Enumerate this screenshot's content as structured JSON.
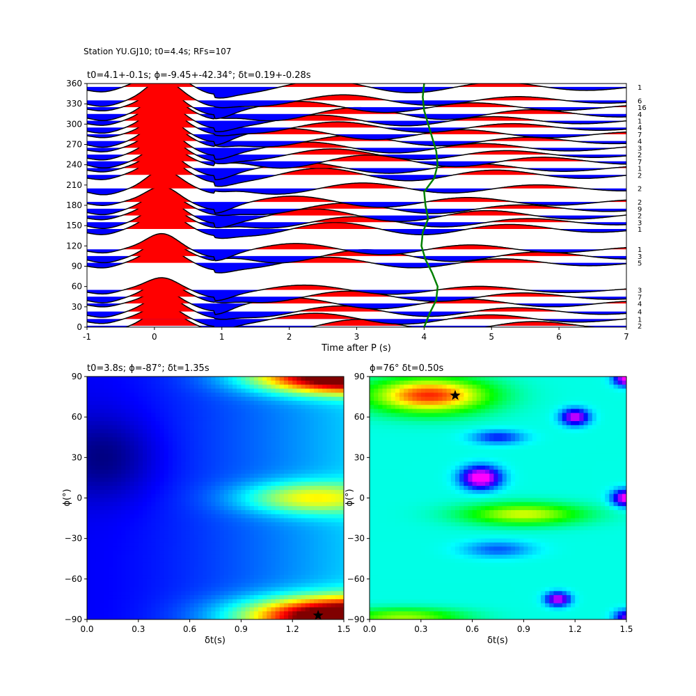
{
  "figure": {
    "suptitle": "Station YU.GJ10; t0=4.4s; RFs=107"
  },
  "chart_data": [
    {
      "type": "line",
      "panel": "traces",
      "title": "t0=4.1+-0.1s; ϕ=-9.45+-42.34°; δt=0.19+-0.28s",
      "xlabel": "Time after P (s)",
      "ylabel": "",
      "xlim": [
        -1,
        7
      ],
      "ylim": [
        0,
        360
      ],
      "xticks": [
        -1,
        0,
        1,
        2,
        3,
        4,
        5,
        6,
        7
      ],
      "yticks": [
        0,
        30,
        60,
        90,
        120,
        150,
        180,
        210,
        240,
        270,
        300,
        330,
        360
      ],
      "fill_positive_color": "#ff0000",
      "fill_negative_color": "#0000ff",
      "t0_curve_color": "#008000",
      "traces": [
        {
          "baz": 2,
          "count": "2",
          "peak": 0.8,
          "lobe": 0.35,
          "phase": 0.5
        },
        {
          "baz": 12,
          "count": "1",
          "peak": 0.7,
          "lobe": 0.3,
          "phase": 2.1
        },
        {
          "baz": 23,
          "count": "4",
          "peak": 0.75,
          "lobe": 0.3,
          "phase": 1.2
        },
        {
          "baz": 35,
          "count": "4",
          "peak": 0.7,
          "lobe": 0.3,
          "phase": 3.0
        },
        {
          "baz": 45,
          "count": "7",
          "peak": 0.7,
          "lobe": 0.3,
          "phase": 0.9
        },
        {
          "baz": 55,
          "count": "3",
          "peak": 0.6,
          "lobe": 0.25,
          "phase": 2.5
        },
        {
          "baz": 95,
          "count": "5",
          "peak": 0.8,
          "lobe": 0.3,
          "phase": 1.7
        },
        {
          "baz": 105,
          "count": "3",
          "peak": 0.8,
          "lobe": 0.35,
          "phase": 0.3
        },
        {
          "baz": 115,
          "count": "1",
          "peak": 0.8,
          "lobe": 0.3,
          "phase": 2.8
        },
        {
          "baz": 145,
          "count": "1",
          "peak": 0.9,
          "lobe": 0.35,
          "phase": 1.4
        },
        {
          "baz": 155,
          "count": "3",
          "peak": 0.9,
          "lobe": 0.3,
          "phase": 0.7
        },
        {
          "baz": 165,
          "count": "2",
          "peak": 0.9,
          "lobe": 0.35,
          "phase": 2.2
        },
        {
          "baz": 175,
          "count": "9",
          "peak": 0.8,
          "lobe": 0.3,
          "phase": 1.0
        },
        {
          "baz": 185,
          "count": "2",
          "peak": 0.8,
          "lobe": 0.3,
          "phase": 2.9
        },
        {
          "baz": 205,
          "count": "2",
          "peak": 0.9,
          "lobe": 0.3,
          "phase": 0.4
        },
        {
          "baz": 225,
          "count": "2",
          "peak": 0.9,
          "lobe": 0.35,
          "phase": 1.9
        },
        {
          "baz": 235,
          "count": "1",
          "peak": 0.9,
          "lobe": 0.3,
          "phase": 2.6
        },
        {
          "baz": 245,
          "count": "7",
          "peak": 0.9,
          "lobe": 0.35,
          "phase": 0.2
        },
        {
          "baz": 255,
          "count": "2",
          "peak": 0.9,
          "lobe": 0.3,
          "phase": 1.5
        },
        {
          "baz": 265,
          "count": "3",
          "peak": 1.0,
          "lobe": 0.3,
          "phase": 2.4
        },
        {
          "baz": 275,
          "count": "4",
          "peak": 1.0,
          "lobe": 0.3,
          "phase": 0.8
        },
        {
          "baz": 285,
          "count": "7",
          "peak": 1.0,
          "lobe": 0.3,
          "phase": 3.1
        },
        {
          "baz": 295,
          "count": "4",
          "peak": 1.0,
          "lobe": 0.3,
          "phase": 1.3
        },
        {
          "baz": 305,
          "count": "1",
          "peak": 1.0,
          "lobe": 0.3,
          "phase": 2.0
        },
        {
          "baz": 315,
          "count": "4",
          "peak": 1.0,
          "lobe": 0.35,
          "phase": 0.6
        },
        {
          "baz": 325,
          "count": "16",
          "peak": 1.0,
          "lobe": 0.3,
          "phase": 2.7
        },
        {
          "baz": 335,
          "count": "6",
          "peak": 1.0,
          "lobe": 0.3,
          "phase": 1.1
        },
        {
          "baz": 355,
          "count": "1",
          "peak": 1.0,
          "lobe": 0.35,
          "phase": 1.8
        }
      ],
      "t0_curve": [
        {
          "baz": 0,
          "t": 4.0
        },
        {
          "baz": 20,
          "t": 4.08
        },
        {
          "baz": 40,
          "t": 4.18
        },
        {
          "baz": 60,
          "t": 4.2
        },
        {
          "baz": 80,
          "t": 4.12
        },
        {
          "baz": 100,
          "t": 4.02
        },
        {
          "baz": 120,
          "t": 3.96
        },
        {
          "baz": 140,
          "t": 3.98
        },
        {
          "baz": 160,
          "t": 4.06
        },
        {
          "baz": 180,
          "t": 4.02
        },
        {
          "baz": 200,
          "t": 4.0
        },
        {
          "baz": 220,
          "t": 4.15
        },
        {
          "baz": 240,
          "t": 4.2
        },
        {
          "baz": 260,
          "t": 4.18
        },
        {
          "baz": 280,
          "t": 4.12
        },
        {
          "baz": 300,
          "t": 4.06
        },
        {
          "baz": 320,
          "t": 4.0
        },
        {
          "baz": 340,
          "t": 3.98
        },
        {
          "baz": 360,
          "t": 4.0
        }
      ]
    },
    {
      "type": "heatmap",
      "panel": "grid-left",
      "title": "t0=3.8s; ϕ=-87°; δt=1.35s",
      "xlabel": "δt(s)",
      "ylabel": "ϕ(°)",
      "xlim": [
        0,
        1.5
      ],
      "ylim": [
        -90,
        90
      ],
      "xticks": [
        "0.0",
        "0.3",
        "0.6",
        "0.9",
        "1.2",
        "1.5"
      ],
      "yticks": [
        -90,
        -60,
        -30,
        0,
        30,
        60,
        90
      ],
      "colormap": "jet",
      "best": {
        "dt": 1.35,
        "phi": -87
      }
    },
    {
      "type": "heatmap",
      "panel": "grid-right",
      "title": "ϕ=76° δt=0.50s",
      "xlabel": "δt(s)",
      "ylabel": "ϕ(°)",
      "xlim": [
        0,
        1.5
      ],
      "ylim": [
        -90,
        90
      ],
      "xticks": [
        "0.0",
        "0.3",
        "0.6",
        "0.9",
        "1.2",
        "1.5"
      ],
      "yticks": [
        -90,
        -60,
        -30,
        0,
        30,
        60,
        90
      ],
      "colormap": "hsv",
      "best": {
        "dt": 0.5,
        "phi": 76
      }
    }
  ]
}
